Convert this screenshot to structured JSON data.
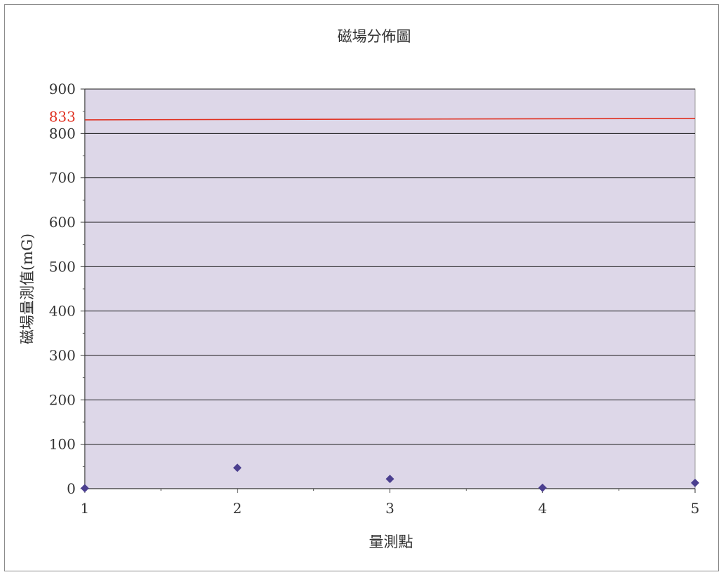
{
  "chart_data": {
    "type": "scatter",
    "title": "磁場分佈圖",
    "xlabel": "量測點",
    "ylabel": "磁場量測值(mG)",
    "xlim": [
      1,
      5
    ],
    "ylim": [
      0,
      900
    ],
    "x_ticks": [
      "1",
      "2",
      "3",
      "4",
      "5"
    ],
    "y_ticks": [
      "0",
      "100",
      "200",
      "300",
      "400",
      "500",
      "600",
      "700",
      "800",
      "900"
    ],
    "grid": true,
    "legend": "none",
    "series": [
      {
        "x": [
          1,
          2,
          3,
          4,
          5
        ],
        "y": [
          1,
          47,
          22,
          2,
          13
        ],
        "color": "#4b3f8f"
      }
    ],
    "reference_line": {
      "value": 833,
      "label": "833",
      "color": "#e03020"
    },
    "plot_background": "#ddd7e8"
  }
}
